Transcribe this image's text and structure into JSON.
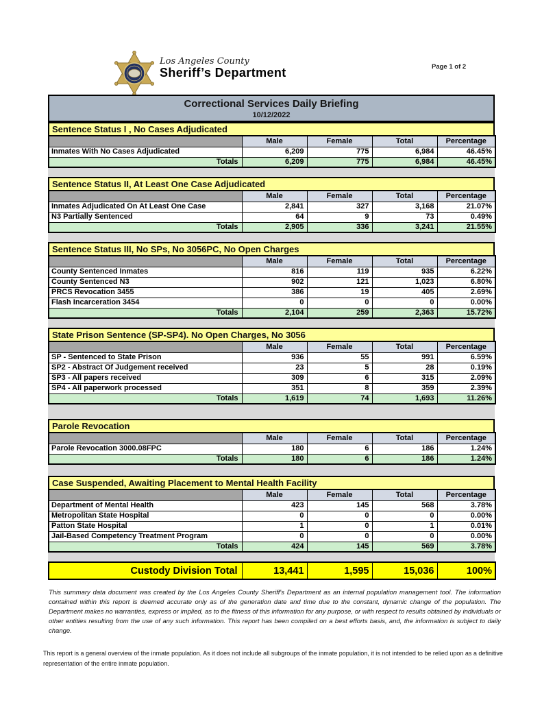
{
  "header": {
    "logo": {
      "county": "Los Angeles County",
      "department": "Sheriff’s Department"
    },
    "page_indicator": "Page 1 of 2"
  },
  "report": {
    "title": "Correctional Services Daily Briefing",
    "date": "10/12/2022",
    "columns": [
      "Male",
      "Female",
      "Total",
      "Percentage"
    ],
    "sections": [
      {
        "header": "Sentence Status I , No Cases Adjudicated",
        "rows": [
          {
            "label": "Inmates With No Cases Adjudicated",
            "values": [
              "6,209",
              "775",
              "6,984",
              "46.45%"
            ]
          }
        ],
        "totals": {
          "label": "Totals",
          "values": [
            "6,209",
            "775",
            "6,984",
            "46.45%"
          ]
        }
      },
      {
        "header": "Sentence Status II, At Least One Case Adjudicated",
        "rows": [
          {
            "label": "Inmates Adjudicated On At Least One Case",
            "values": [
              "2,841",
              "327",
              "3,168",
              "21.07%"
            ]
          },
          {
            "label": "N3 Partially Sentenced",
            "values": [
              "64",
              "9",
              "73",
              "0.49%"
            ]
          }
        ],
        "totals": {
          "label": "Totals",
          "values": [
            "2,905",
            "336",
            "3,241",
            "21.55%"
          ]
        }
      },
      {
        "header": "Sentence Status III, No SPs, No 3056PC, No Open Charges",
        "rows": [
          {
            "label": "County Sentenced Inmates",
            "values": [
              "816",
              "119",
              "935",
              "6.22%"
            ]
          },
          {
            "label": "County Sentenced N3",
            "values": [
              "902",
              "121",
              "1,023",
              "6.80%"
            ]
          },
          {
            "label": "PRCS Revocation 3455",
            "values": [
              "386",
              "19",
              "405",
              "2.69%"
            ]
          },
          {
            "label": "Flash Incarceration 3454",
            "values": [
              "0",
              "0",
              "0",
              "0.00%"
            ]
          }
        ],
        "totals": {
          "label": "Totals",
          "values": [
            "2,104",
            "259",
            "2,363",
            "15.72%"
          ]
        }
      },
      {
        "header": "State Prison Sentence (SP-SP4). No Open Charges, No 3056",
        "rows": [
          {
            "label": "SP - Sentenced to State Prison",
            "values": [
              "936",
              "55",
              "991",
              "6.59%"
            ]
          },
          {
            "label": "SP2 - Abstract Of Judgement received",
            "values": [
              "23",
              "5",
              "28",
              "0.19%"
            ]
          },
          {
            "label": "SP3 - All papers received",
            "values": [
              "309",
              "6",
              "315",
              "2.09%"
            ]
          },
          {
            "label": "SP4 - All paperwork processed",
            "values": [
              "351",
              "8",
              "359",
              "2.39%"
            ]
          }
        ],
        "totals": {
          "label": "Totals",
          "values": [
            "1,619",
            "74",
            "1,693",
            "11.26%"
          ]
        }
      },
      {
        "header": "Parole Revocation",
        "rows": [
          {
            "label": "Parole Revocation 3000.08FPC",
            "values": [
              "180",
              "6",
              "186",
              "1.24%"
            ]
          }
        ],
        "totals": {
          "label": "Totals",
          "values": [
            "180",
            "6",
            "186",
            "1.24%"
          ]
        }
      },
      {
        "header": "Case Suspended, Awaiting Placement to Mental Health Facility",
        "rows": [
          {
            "label": "Department of Mental Health",
            "values": [
              "423",
              "145",
              "568",
              "3.78%"
            ]
          },
          {
            "label": "Metropolitan State Hospital",
            "values": [
              "0",
              "0",
              "0",
              "0.00%"
            ]
          },
          {
            "label": "Patton State Hospital",
            "values": [
              "1",
              "0",
              "1",
              "0.01%"
            ]
          },
          {
            "label": "Jail-Based Competency Treatment Program",
            "values": [
              "0",
              "0",
              "0",
              "0.00%"
            ]
          }
        ],
        "totals": {
          "label": "Totals",
          "values": [
            "424",
            "145",
            "569",
            "3.78%"
          ]
        }
      }
    ],
    "grand_total": {
      "label": "Custody Division Total",
      "values": [
        "13,441",
        "1,595",
        "15,036",
        "100%"
      ]
    }
  },
  "footer": {
    "disclaimer": "This summary data document was created by the Los Angeles County Sheriff's Department as an internal population management tool.  The information contained within this report is deemed accurate only as of the generation date and time due to the constant, dynamic change of the population.  The Department makes no warranties, express or implied, as to the fitness of this information for any purpose, or with respect to results obtained by individuals or other entities resulting from the use of any such information.  This report has been compiled on a best efforts basis, and, the information is subject to daily change.",
    "scope_note": "This report is a general overview of the inmate population.  As it does not include all subgroups of the inmate population, it is not intended to be relied upon as a definitive representation of the entire inmate population."
  },
  "colors": {
    "section_header_bg": "#FFFF99",
    "column_header_bg": "#D3D9E4",
    "spacer_cell_bg": "#A6A6A6",
    "totals_row_bg": "#CDEECD",
    "grand_total_bg": "#FFFF00",
    "title_bar_bg": "#ABB7C5",
    "page_gap_bg": "#D9D9D9",
    "badge_gold": "#C9A955",
    "badge_navy": "#22315F"
  }
}
